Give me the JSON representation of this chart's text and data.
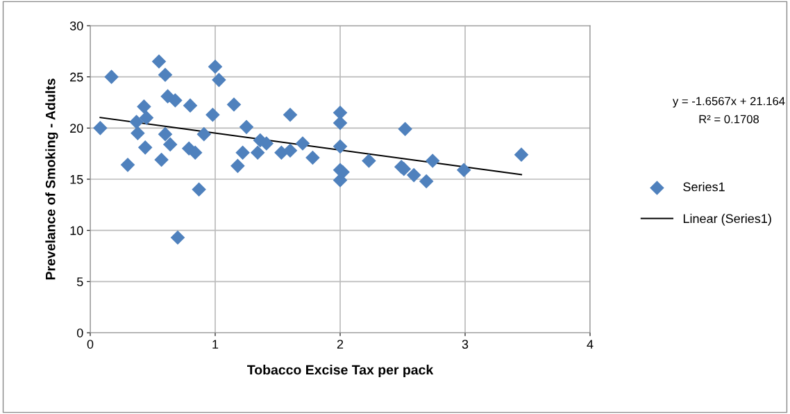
{
  "chart_data": {
    "type": "scatter",
    "xlabel": "Tobacco Excise Tax per pack",
    "ylabel": "Prevelance of Smoking - Adults",
    "xlim": [
      0,
      4
    ],
    "xticks": [
      0,
      1,
      2,
      3,
      4
    ],
    "ylim": [
      0,
      30
    ],
    "yticks": [
      0,
      5,
      10,
      15,
      20,
      25,
      30
    ],
    "grid": true,
    "legend": "right",
    "marker": "diamond",
    "annotations": [
      "y = -1.6567x + 21.164",
      "R² = 0.1708"
    ],
    "series": [
      {
        "name": "Series1",
        "color": "#4f81bd",
        "x": [
          0.08,
          0.17,
          0.3,
          0.37,
          0.38,
          0.43,
          0.44,
          0.45,
          0.55,
          0.57,
          0.6,
          0.6,
          0.62,
          0.64,
          0.68,
          0.7,
          0.79,
          0.8,
          0.84,
          0.87,
          0.91,
          0.98,
          1.0,
          1.03,
          1.15,
          1.18,
          1.22,
          1.25,
          1.34,
          1.36,
          1.41,
          1.53,
          1.6,
          1.6,
          1.7,
          1.78,
          2.0,
          2.0,
          2.0,
          2.0,
          2.02,
          2.0,
          2.23,
          2.49,
          2.51,
          2.52,
          2.59,
          2.69,
          2.74,
          2.99,
          3.45
        ],
        "values": [
          20.0,
          25.0,
          16.4,
          20.6,
          19.5,
          22.1,
          18.1,
          21.0,
          26.5,
          16.9,
          25.2,
          19.4,
          23.1,
          18.4,
          22.7,
          9.3,
          18.0,
          22.2,
          17.6,
          14.0,
          19.4,
          21.3,
          26.0,
          24.7,
          22.3,
          16.3,
          17.6,
          20.1,
          17.6,
          18.8,
          18.5,
          17.6,
          17.8,
          21.3,
          18.5,
          17.1,
          21.5,
          20.5,
          18.2,
          15.9,
          15.7,
          14.9,
          16.8,
          16.2,
          16.0,
          19.9,
          15.4,
          14.8,
          16.8,
          15.9,
          17.4
        ]
      },
      {
        "name": "Linear (Series1)",
        "type": "line",
        "color": "#000000",
        "marker": "none",
        "line_style": "solid",
        "x": [
          0.08,
          3.45
        ],
        "values": [
          21.03,
          15.45
        ]
      }
    ]
  }
}
